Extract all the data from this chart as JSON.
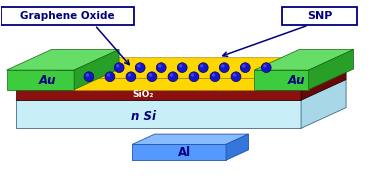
{
  "background_color": "#ffffff",
  "layers": {
    "nSi": {
      "color": "#c8eef8",
      "label": "n Si",
      "label_color": "#000080"
    },
    "SiO2": {
      "color": "#8b1010",
      "label": "SiO₂",
      "label_color": "#ffffff"
    },
    "GO": {
      "color": "#ffd700",
      "hex_line_color": "#c8a000"
    },
    "Au": {
      "color": "#3dcc3d",
      "top_color": "#66dd66",
      "side_color": "#28a028",
      "label": "Au",
      "label_color": "#000080"
    },
    "Al": {
      "color": "#5599ff",
      "top_color": "#88bbff",
      "side_color": "#3377dd",
      "label": "Al",
      "label_color": "#000080"
    }
  },
  "SNP_color": "#1515cc",
  "SNP_edge_color": "#000066",
  "SNP_highlight": "#6666ee",
  "annotation_graphene_oxide": "Graphene Oxide",
  "annotation_snp": "SNP",
  "ann_box_face": "#ffffff",
  "ann_box_edge": "#000080",
  "ann_text_color": "#000080",
  "arrow_color": "#000080"
}
